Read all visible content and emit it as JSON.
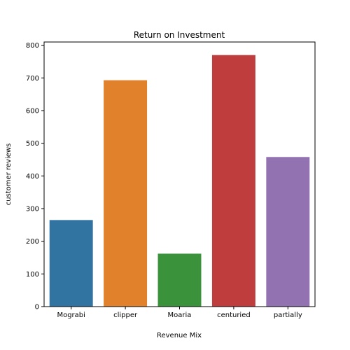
{
  "chart_data": {
    "type": "bar",
    "title": "Return on Investment",
    "xlabel": "Revenue Mix",
    "ylabel": "customer reviews",
    "categories": [
      "Mograbi",
      "clipper",
      "Moaria",
      "centuried",
      "partially"
    ],
    "values": [
      265,
      693,
      162,
      770,
      458
    ],
    "colors": [
      "#3274a1",
      "#e1812c",
      "#3a923a",
      "#c03d3e",
      "#9372b2"
    ],
    "ylim": [
      0,
      810
    ],
    "yticks": [
      0,
      100,
      200,
      300,
      400,
      500,
      600,
      700,
      800
    ],
    "grid": false,
    "legend": "none"
  }
}
